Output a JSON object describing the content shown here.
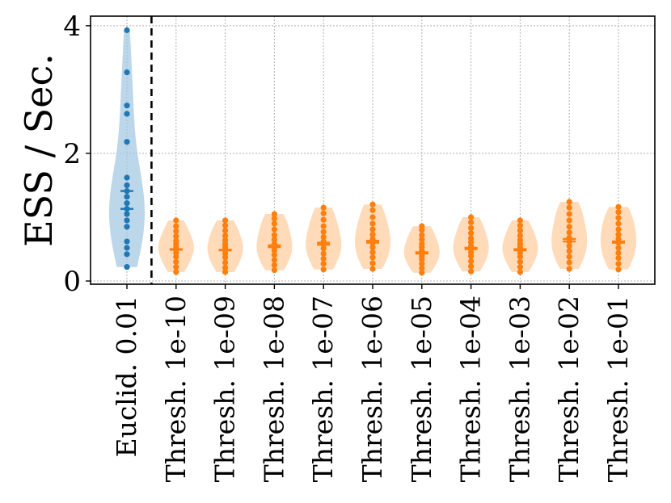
{
  "chart_data": {
    "type": "violin",
    "title": "",
    "xlabel": "",
    "ylabel": "ESS / Sec.",
    "ylim": [
      -0.05,
      4.15
    ],
    "yticks": [
      0,
      2,
      4
    ],
    "grid": true,
    "categories": [
      "Euclid. 0.01",
      "Thresh. 1e-10",
      "Thresh. 1e-09",
      "Thresh. 1e-08",
      "Thresh. 1e-07",
      "Thresh. 1e-06",
      "Thresh. 1e-05",
      "Thresh. 1e-04",
      "Thresh. 1e-03",
      "Thresh. 1e-02",
      "Thresh. 1e-01"
    ],
    "separator_after_index": 0,
    "colors": {
      "euclid_point": "#1f77b4",
      "euclid_body": "#a6c8e3",
      "thresh_point": "#ff7f0e",
      "thresh_body": "#ffcfa3"
    },
    "series": [
      {
        "median": 1.13,
        "mean": 1.41,
        "values": [
          0.22,
          0.42,
          0.52,
          0.62,
          0.85,
          0.95,
          1.05,
          1.13,
          1.22,
          1.32,
          1.41,
          1.5,
          1.62,
          2.18,
          2.62,
          2.75,
          3.27,
          3.93
        ]
      },
      {
        "median": 0.49,
        "mean": 0.5,
        "values": [
          0.14,
          0.22,
          0.3,
          0.38,
          0.44,
          0.49,
          0.53,
          0.58,
          0.63,
          0.7,
          0.78,
          0.86,
          0.95
        ]
      },
      {
        "median": 0.48,
        "mean": 0.49,
        "values": [
          0.14,
          0.21,
          0.29,
          0.37,
          0.43,
          0.48,
          0.53,
          0.58,
          0.64,
          0.71,
          0.79,
          0.87,
          0.95
        ]
      },
      {
        "median": 0.53,
        "mean": 0.56,
        "values": [
          0.17,
          0.25,
          0.33,
          0.41,
          0.48,
          0.53,
          0.58,
          0.65,
          0.72,
          0.81,
          0.9,
          0.98,
          1.05
        ]
      },
      {
        "median": 0.57,
        "mean": 0.6,
        "values": [
          0.18,
          0.27,
          0.35,
          0.43,
          0.51,
          0.57,
          0.62,
          0.69,
          0.77,
          0.86,
          0.96,
          1.06,
          1.15
        ]
      },
      {
        "median": 0.6,
        "mean": 0.63,
        "values": [
          0.19,
          0.28,
          0.37,
          0.45,
          0.53,
          0.6,
          0.66,
          0.73,
          0.81,
          0.9,
          1.0,
          1.11,
          1.2
        ]
      },
      {
        "median": 0.43,
        "mean": 0.45,
        "values": [
          0.13,
          0.2,
          0.27,
          0.34,
          0.39,
          0.43,
          0.48,
          0.53,
          0.58,
          0.65,
          0.72,
          0.8,
          0.86
        ]
      },
      {
        "median": 0.5,
        "mean": 0.52,
        "values": [
          0.15,
          0.23,
          0.31,
          0.39,
          0.45,
          0.5,
          0.55,
          0.61,
          0.67,
          0.75,
          0.83,
          0.92,
          1.0
        ]
      },
      {
        "median": 0.48,
        "mean": 0.5,
        "values": [
          0.14,
          0.22,
          0.3,
          0.38,
          0.44,
          0.48,
          0.53,
          0.58,
          0.64,
          0.71,
          0.79,
          0.87,
          0.95
        ]
      },
      {
        "median": 0.62,
        "mean": 0.66,
        "values": [
          0.19,
          0.29,
          0.38,
          0.47,
          0.55,
          0.62,
          0.68,
          0.76,
          0.85,
          0.95,
          1.05,
          1.15,
          1.24
        ]
      },
      {
        "median": 0.6,
        "mean": 0.62,
        "values": [
          0.18,
          0.27,
          0.36,
          0.44,
          0.52,
          0.6,
          0.66,
          0.73,
          0.81,
          0.9,
          0.99,
          1.08,
          1.16
        ]
      }
    ]
  }
}
